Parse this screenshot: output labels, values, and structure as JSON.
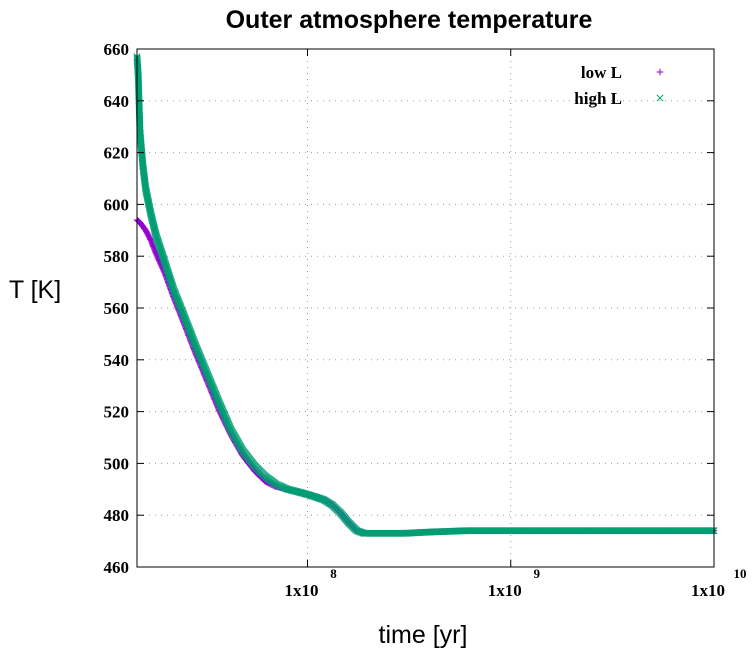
{
  "chart_data": {
    "type": "scatter",
    "title": "Outer atmosphere temperature",
    "xlabel": "time [yr]",
    "ylabel": "T [K]",
    "xscale": "log",
    "xlim": [
      14500000,
      10000000000
    ],
    "ylim": [
      460,
      660
    ],
    "grid": true,
    "legend_position": "top-right",
    "x_ticks": [
      {
        "value": 100000000,
        "base": "1x10",
        "exp": "8"
      },
      {
        "value": 1000000000,
        "base": "1x10",
        "exp": "9"
      },
      {
        "value": 10000000000,
        "base": "1x10",
        "exp": "10"
      }
    ],
    "y_ticks": [
      "460",
      "480",
      "500",
      "520",
      "540",
      "560",
      "580",
      "600",
      "620",
      "640",
      "660"
    ],
    "series": [
      {
        "name": "low L",
        "marker": "+",
        "color": "#9400d3",
        "x": [
          14500000,
          15000000,
          16000000,
          17000000,
          18000000,
          20000000,
          22000000,
          25000000,
          28000000,
          32000000,
          37000000,
          42000000,
          48000000,
          55000000,
          62000000,
          70000000,
          80000000,
          90000000,
          100000000,
          110000000,
          120000000,
          132000000,
          145000000,
          160000000,
          175000000,
          190000000,
          210000000,
          250000000,
          300000000,
          400000000,
          600000000,
          1000000000,
          2000000000,
          4000000000,
          7000000000,
          10000000000
        ],
        "y": [
          594,
          593,
          590,
          586,
          581,
          573,
          564,
          553,
          543,
          532,
          520,
          511,
          503,
          497,
          493,
          491,
          490,
          489,
          488,
          487,
          486,
          484,
          481,
          477,
          474,
          473,
          473,
          473,
          473,
          473.5,
          474,
          474,
          474,
          474,
          474,
          474
        ]
      },
      {
        "name": "high L",
        "marker": "x",
        "color": "#009e73",
        "x": [
          14500000,
          14700000,
          15000000,
          15500000,
          16000000,
          17000000,
          18000000,
          20000000,
          22000000,
          25000000,
          28000000,
          32000000,
          37000000,
          42000000,
          48000000,
          55000000,
          62000000,
          70000000,
          80000000,
          90000000,
          100000000,
          110000000,
          120000000,
          132000000,
          145000000,
          160000000,
          175000000,
          190000000,
          210000000,
          250000000,
          300000000,
          400000000,
          600000000,
          1000000000,
          2000000000,
          4000000000,
          7000000000,
          10000000000
        ],
        "y": [
          657,
          650,
          628,
          615,
          606,
          596,
          588,
          577,
          567,
          556,
          546,
          535,
          523,
          513,
          505,
          499,
          495,
          492,
          490,
          489,
          488,
          487,
          486,
          484,
          481,
          477,
          474,
          473,
          473,
          473,
          473,
          473.5,
          474,
          474,
          474,
          474,
          474,
          474
        ]
      }
    ]
  }
}
